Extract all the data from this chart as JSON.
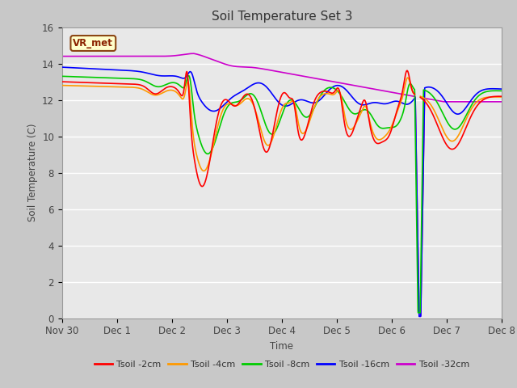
{
  "title": "Soil Temperature Set 3",
  "xlabel": "Time",
  "ylabel": "Soil Temperature (C)",
  "ylim": [
    0,
    16
  ],
  "yticks": [
    0,
    2,
    4,
    6,
    8,
    10,
    12,
    14,
    16
  ],
  "series_colors": [
    "#ff0000",
    "#ff9900",
    "#00cc00",
    "#0000ff",
    "#cc00cc"
  ],
  "series_labels": [
    "Tsoil -2cm",
    "Tsoil -4cm",
    "Tsoil -8cm",
    "Tsoil -16cm",
    "Tsoil -32cm"
  ],
  "annotation_text": "VR_met",
  "fig_bg_color": "#c8c8c8",
  "plot_bg_color": "#e8e8e8",
  "x_start": 0,
  "x_end": 8,
  "xtick_positions": [
    0,
    1,
    2,
    3,
    4,
    5,
    6,
    7,
    8
  ],
  "xtick_labels": [
    "Nov 30",
    "Dec 1",
    "Dec 2",
    "Dec 3",
    "Dec 4",
    "Dec 5",
    "Dec 6",
    "Dec 7",
    "Dec 8"
  ]
}
